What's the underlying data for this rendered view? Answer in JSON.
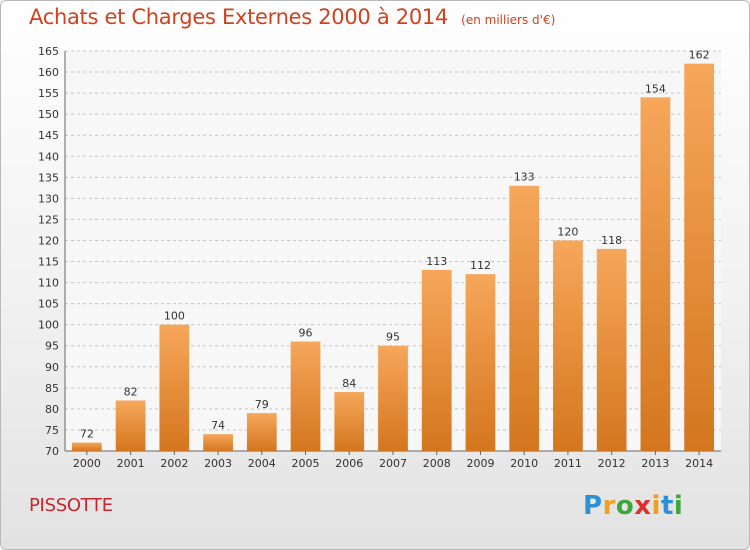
{
  "title": "Achats et Charges Externes 2000 à 2014",
  "subtitle": "(en milliers d'€)",
  "commune": "PISSOTTE",
  "logo": {
    "letters": [
      "P",
      "r",
      "o",
      "x",
      "i",
      "t",
      "i"
    ],
    "colors": [
      "#2d8fd4",
      "#f0a020",
      "#3aa83a",
      "#e0302c",
      "#f0a020",
      "#2d8fd4",
      "#3aa83a"
    ]
  },
  "colors": {
    "title": "#d0421d",
    "bar_top": "#f6a75a",
    "bar_bottom": "#d4761f",
    "commune": "#c8252e"
  },
  "chart_data": {
    "type": "bar",
    "categories": [
      "2000",
      "2001",
      "2002",
      "2003",
      "2004",
      "2005",
      "2006",
      "2007",
      "2008",
      "2009",
      "2010",
      "2011",
      "2012",
      "2013",
      "2014"
    ],
    "values": [
      72,
      82,
      100,
      74,
      79,
      96,
      84,
      95,
      113,
      112,
      133,
      120,
      118,
      154,
      162
    ],
    "data_labels": [
      "72",
      "82",
      "100",
      "74",
      "79",
      "96",
      "84",
      "95",
      "113",
      "112",
      "133",
      "120",
      "118",
      "154",
      "162"
    ],
    "yticks": [
      "70",
      "75",
      "80",
      "85",
      "90",
      "95",
      "100",
      "105",
      "110",
      "115",
      "120",
      "125",
      "130",
      "135",
      "140",
      "145",
      "150",
      "155",
      "160",
      "165"
    ],
    "ylim": [
      70,
      165
    ],
    "grid": true,
    "xlabel": "",
    "ylabel": ""
  }
}
